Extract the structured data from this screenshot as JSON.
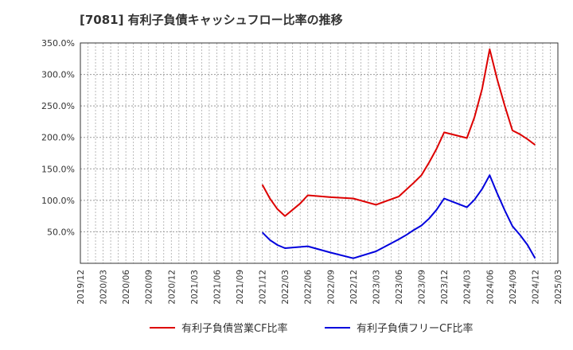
{
  "chart_data": {
    "type": "line",
    "title": "[7081]  有利子負債キャッシュフロー比率の推移",
    "xlabel": "",
    "ylabel": "",
    "ylim": [
      0,
      350
    ],
    "yticks": [
      50,
      100,
      150,
      200,
      250,
      300,
      350
    ],
    "ytick_labels": [
      "50.0%",
      "100.0%",
      "150.0%",
      "200.0%",
      "250.0%",
      "300.0%",
      "350.0%"
    ],
    "x_tick_labels": [
      "2019/12",
      "2020/03",
      "2020/06",
      "2020/09",
      "2020/12",
      "2021/03",
      "2021/06",
      "2021/09",
      "2021/12",
      "2022/03",
      "2022/06",
      "2022/09",
      "2022/12",
      "2023/03",
      "2023/06",
      "2023/09",
      "2023/12",
      "2024/03",
      "2024/06",
      "2024/09",
      "2024/12",
      "2025/03"
    ],
    "xlim": [
      "2019/12",
      "2025/03"
    ],
    "grid": true,
    "legend_position": "bottom",
    "series": [
      {
        "name": "有利子負債営業CF比率",
        "color": "#dd0000",
        "points": [
          [
            "2021/12",
            125
          ],
          [
            "2022/01",
            103
          ],
          [
            "2022/02",
            86
          ],
          [
            "2022/03",
            75
          ],
          [
            "2022/04",
            85
          ],
          [
            "2022/05",
            95
          ],
          [
            "2022/06",
            108
          ],
          [
            "2022/09",
            105
          ],
          [
            "2022/12",
            103
          ],
          [
            "2023/03",
            93
          ],
          [
            "2023/06",
            106
          ],
          [
            "2023/07",
            117
          ],
          [
            "2023/08",
            128
          ],
          [
            "2023/09",
            140
          ],
          [
            "2023/10",
            160
          ],
          [
            "2023/11",
            182
          ],
          [
            "2023/12",
            208
          ],
          [
            "2024/03",
            199
          ],
          [
            "2024/04",
            232
          ],
          [
            "2024/05",
            277
          ],
          [
            "2024/06",
            340
          ],
          [
            "2024/07",
            292
          ],
          [
            "2024/08",
            250
          ],
          [
            "2024/09",
            211
          ],
          [
            "2024/10",
            205
          ],
          [
            "2024/11",
            197
          ],
          [
            "2024/12",
            188
          ]
        ]
      },
      {
        "name": "有利子負債フリーCF比率",
        "color": "#0000dd",
        "points": [
          [
            "2021/12",
            49
          ],
          [
            "2022/01",
            37
          ],
          [
            "2022/02",
            29
          ],
          [
            "2022/03",
            24
          ],
          [
            "2022/06",
            27
          ],
          [
            "2022/09",
            17
          ],
          [
            "2022/12",
            8
          ],
          [
            "2023/03",
            19
          ],
          [
            "2023/06",
            38
          ],
          [
            "2023/07",
            45
          ],
          [
            "2023/08",
            53
          ],
          [
            "2023/09",
            60
          ],
          [
            "2023/10",
            71
          ],
          [
            "2023/11",
            85
          ],
          [
            "2023/12",
            103
          ],
          [
            "2024/03",
            89
          ],
          [
            "2024/04",
            101
          ],
          [
            "2024/05",
            118
          ],
          [
            "2024/06",
            140
          ],
          [
            "2024/07",
            111
          ],
          [
            "2024/08",
            84
          ],
          [
            "2024/09",
            59
          ],
          [
            "2024/10",
            45
          ],
          [
            "2024/11",
            29
          ],
          [
            "2024/12",
            8
          ]
        ]
      }
    ]
  }
}
